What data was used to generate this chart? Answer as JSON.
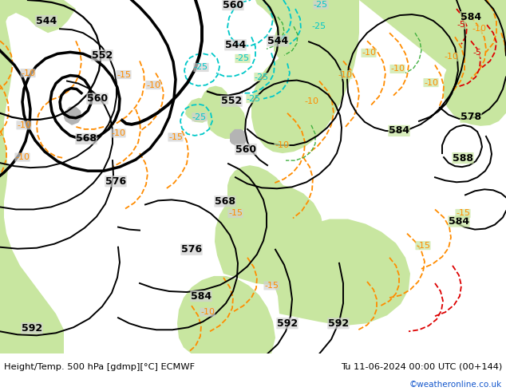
{
  "title_left": "Height/Temp. 500 hPa [gdmp][°C] ECMWF",
  "title_right": "Tu 11-06-2024 00:00 UTC (00+144)",
  "credit": "©weatheronline.co.uk",
  "sea_color": "#d0d0d0",
  "land_color": "#c8e6a0",
  "land_dark": "#b0cc88",
  "land_gray": "#b4b4b4",
  "height_color": "#000000",
  "temp_orange": "#ff8c00",
  "temp_cyan": "#00c8c8",
  "temp_red": "#dd0000",
  "temp_green": "#40b040",
  "figsize": [
    6.34,
    4.9
  ],
  "dpi": 100
}
